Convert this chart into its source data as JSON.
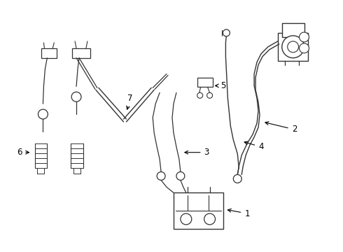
{
  "bg_color": "#ffffff",
  "line_color": "#333333",
  "line_width": 1.0,
  "thin_lw": 0.7,
  "thick_lw": 1.3,
  "fig_w": 4.9,
  "fig_h": 3.6,
  "dpi": 100
}
